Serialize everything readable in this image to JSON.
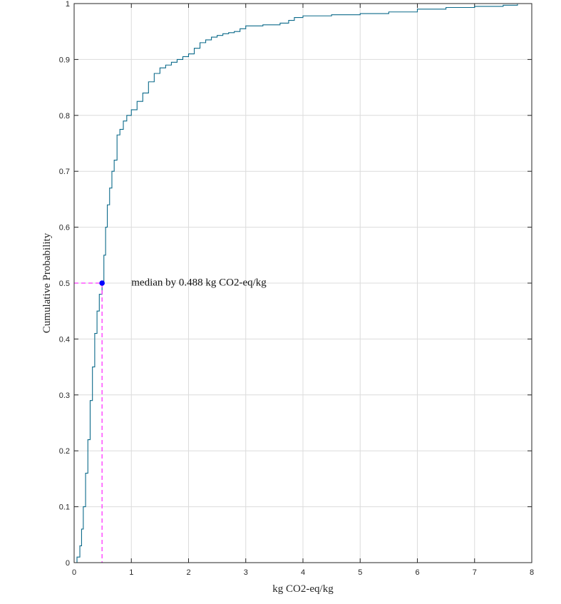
{
  "chart_data": {
    "type": "line",
    "title": "",
    "xlabel": "kg CO2-eq/kg",
    "ylabel": "Cumulative Probability",
    "xlim": [
      0,
      8
    ],
    "ylim": [
      0,
      1
    ],
    "grid": true,
    "x_ticks": [
      0,
      1,
      2,
      3,
      4,
      5,
      6,
      7,
      8
    ],
    "y_ticks": [
      0,
      0.1,
      0.2,
      0.3,
      0.4,
      0.5,
      0.6,
      0.7,
      0.8,
      0.9,
      1
    ],
    "x_tick_labels": [
      "0",
      "1",
      "2",
      "3",
      "4",
      "5",
      "6",
      "7",
      "8"
    ],
    "y_tick_labels": [
      "0",
      "0.1",
      "0.2",
      "0.3",
      "0.4",
      "0.5",
      "0.6",
      "0.7",
      "0.8",
      "0.9",
      "1"
    ],
    "series": [
      {
        "style": "stairs",
        "color": "#0b6a8a",
        "x": [
          0,
          0.05,
          0.1,
          0.13,
          0.16,
          0.2,
          0.24,
          0.28,
          0.32,
          0.36,
          0.4,
          0.44,
          0.488,
          0.52,
          0.55,
          0.58,
          0.62,
          0.66,
          0.7,
          0.75,
          0.8,
          0.86,
          0.92,
          1.0,
          1.1,
          1.2,
          1.3,
          1.4,
          1.5,
          1.6,
          1.7,
          1.8,
          1.9,
          2.0,
          2.1,
          2.2,
          2.3,
          2.4,
          2.5,
          2.6,
          2.7,
          2.8,
          2.9,
          3.0,
          3.3,
          3.6,
          3.75,
          3.85,
          4.0,
          4.5,
          5.0,
          5.5,
          6.0,
          6.5,
          7.0,
          7.5,
          7.75
        ],
        "y": [
          0,
          0.01,
          0.03,
          0.06,
          0.1,
          0.16,
          0.22,
          0.29,
          0.35,
          0.41,
          0.45,
          0.48,
          0.5,
          0.55,
          0.6,
          0.64,
          0.67,
          0.7,
          0.72,
          0.765,
          0.775,
          0.79,
          0.8,
          0.81,
          0.825,
          0.84,
          0.86,
          0.875,
          0.885,
          0.89,
          0.895,
          0.9,
          0.905,
          0.91,
          0.92,
          0.93,
          0.935,
          0.94,
          0.943,
          0.946,
          0.948,
          0.95,
          0.955,
          0.96,
          0.962,
          0.965,
          0.97,
          0.975,
          0.978,
          0.98,
          0.982,
          0.985,
          0.99,
          0.993,
          0.995,
          0.997,
          0.999
        ]
      }
    ],
    "median": {
      "x": 0.488,
      "y": 0.5,
      "marker_color": "#0000ff",
      "guide_color": "#ff33ff"
    },
    "annotation": {
      "text": "median by 0.488 kg CO2-eq/kg",
      "x": 1.0,
      "y": 0.5
    }
  }
}
